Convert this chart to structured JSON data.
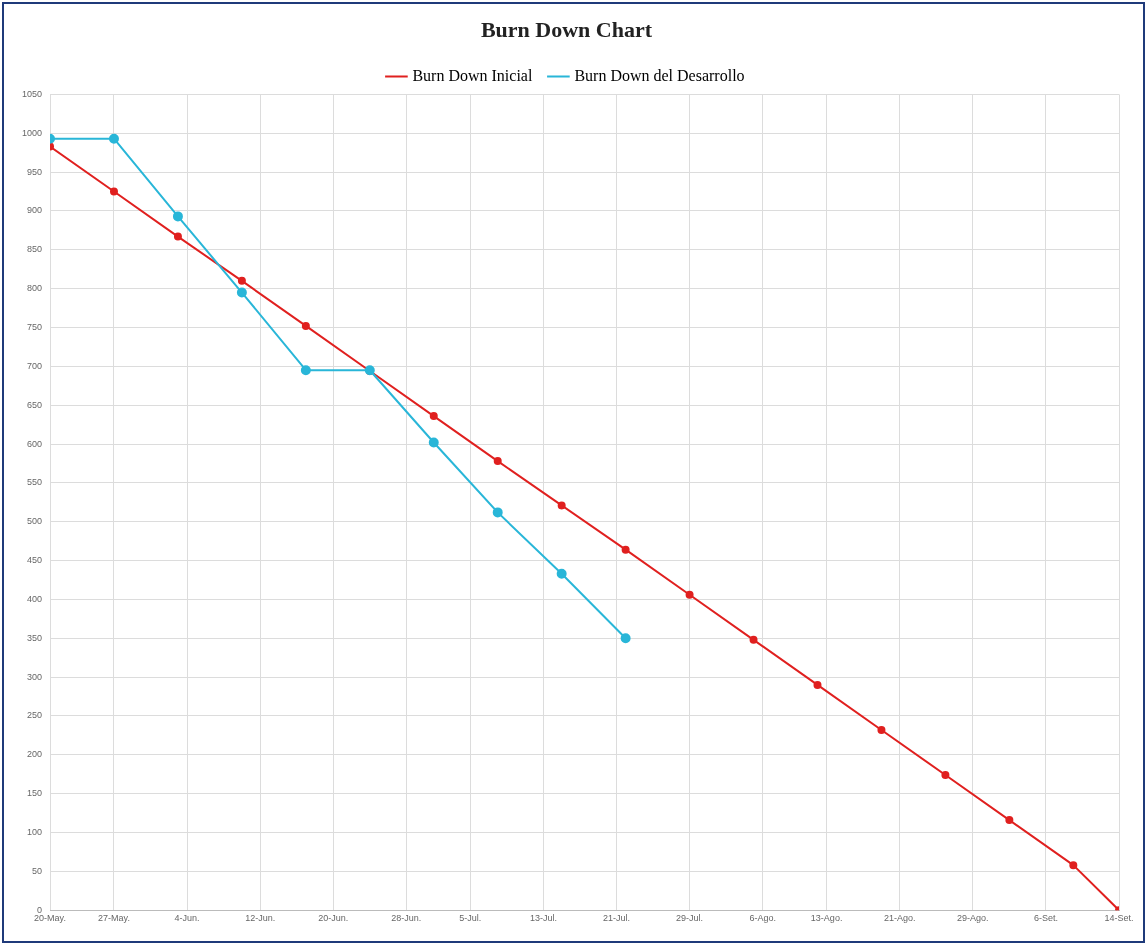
{
  "chart_data": {
    "type": "line",
    "title": "Burn Down Chart",
    "xlim": [
      "--05-20",
      "--09-14"
    ],
    "xticks": [
      {
        "value": "--05-20",
        "label": "20-May."
      },
      {
        "value": "--05-27",
        "label": "27-May."
      },
      {
        "value": "--06-04",
        "label": "4-Jun."
      },
      {
        "value": "--06-12",
        "label": "12-Jun."
      },
      {
        "value": "--06-20",
        "label": "20-Jun."
      },
      {
        "value": "--06-28",
        "label": "28-Jun."
      },
      {
        "value": "--07-05",
        "label": "5-Jul."
      },
      {
        "value": "--07-13",
        "label": "13-Jul."
      },
      {
        "value": "--07-21",
        "label": "21-Jul."
      },
      {
        "value": "--07-29",
        "label": "29-Jul."
      },
      {
        "value": "--08-06",
        "label": "6-Ago."
      },
      {
        "value": "--08-13",
        "label": "13-Ago."
      },
      {
        "value": "--08-21",
        "label": "21-Ago."
      },
      {
        "value": "--08-29",
        "label": "29-Ago."
      },
      {
        "value": "--09-06",
        "label": "6-Set."
      },
      {
        "value": "--09-14",
        "label": "14-Set."
      }
    ],
    "ylim": [
      0,
      1050
    ],
    "yticks": [
      0,
      50,
      100,
      150,
      200,
      250,
      300,
      350,
      400,
      450,
      500,
      550,
      600,
      650,
      700,
      750,
      800,
      850,
      900,
      950,
      1000,
      1050
    ],
    "grid": true,
    "legend": "top",
    "marker": "circle",
    "line_style": "solid",
    "series": [
      {
        "name": "Burn Down Inicial",
        "color": "#e0201f",
        "x": [
          "--05-20",
          "--05-27",
          "--06-03",
          "--06-10",
          "--06-17",
          "--06-24",
          "--07-01",
          "--07-08",
          "--07-15",
          "--07-22",
          "--07-29",
          "--08-05",
          "--08-12",
          "--08-19",
          "--08-26",
          "--09-02",
          "--09-09",
          "--09-14"
        ],
        "values": [
          983,
          925,
          867,
          810,
          752,
          694,
          636,
          578,
          521,
          464,
          406,
          348,
          290,
          232,
          174,
          116,
          58,
          0
        ]
      },
      {
        "name": "Burn Down del Desarrollo",
        "color": "#29b6d8",
        "x": [
          "--05-20",
          "--05-27",
          "--06-03",
          "--06-10",
          "--06-17",
          "--06-24",
          "--07-01",
          "--07-08",
          "--07-15",
          "--07-22"
        ],
        "values": [
          993,
          993,
          893,
          795,
          695,
          695,
          602,
          512,
          433,
          350
        ]
      }
    ]
  }
}
